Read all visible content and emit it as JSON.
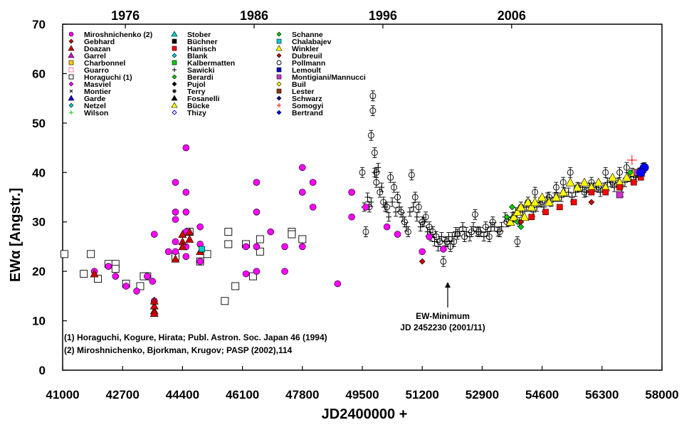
{
  "chart_data": {
    "type": "scatter",
    "xlabel": "JD2400000 +",
    "ylabel": "EWα [Angstr.]",
    "xlim": [
      41000,
      58000
    ],
    "ylim": [
      0,
      70
    ],
    "x_ticks": [
      41000,
      42700,
      44400,
      46100,
      47800,
      49500,
      51200,
      52900,
      54600,
      56300,
      58000
    ],
    "y_ticks": [
      0,
      10,
      20,
      30,
      40,
      50,
      60,
      70
    ],
    "top_axis": {
      "labels": [
        "1976",
        "1986",
        "1996",
        "2006"
      ],
      "positions_jd": [
        42779,
        46431,
        50083,
        53736
      ]
    },
    "grid": false,
    "legend_placement": "top-left",
    "series": [
      {
        "name": "Miroshnichenko (2)",
        "marker": "circle",
        "color": "#ff00ff"
      },
      {
        "name": "Gebhard",
        "marker": "diamond",
        "color": "#cc0000"
      },
      {
        "name": "Doazan",
        "marker": "triangle",
        "color": "#cc0000"
      },
      {
        "name": "Garrel",
        "marker": "triangle",
        "color": "#cc00cc"
      },
      {
        "name": "Charbonnel",
        "marker": "square",
        "color": "#ffcc00"
      },
      {
        "name": "Guarro",
        "marker": "square-open",
        "color": "#ff6699"
      },
      {
        "name": "Horaguchi (1)",
        "marker": "square-open",
        "color": "#000000"
      },
      {
        "name": "Masviel",
        "marker": "diamond",
        "color": "#ff00ff"
      },
      {
        "name": "Montier",
        "marker": "x",
        "color": "#000000"
      },
      {
        "name": "Garde",
        "marker": "triangle",
        "color": "#0000cc"
      },
      {
        "name": "Netzel",
        "marker": "diamond",
        "color": "#00cccc"
      },
      {
        "name": "Wilson",
        "marker": "plus",
        "color": "#00cc00"
      },
      {
        "name": "Stober",
        "marker": "triangle",
        "color": "#00cccc"
      },
      {
        "name": "Büchner",
        "marker": "square",
        "color": "#000000"
      },
      {
        "name": "Hanisch",
        "marker": "square",
        "color": "#ff0000"
      },
      {
        "name": "Blank",
        "marker": "diamond",
        "color": "#00cccc"
      },
      {
        "name": "Kalbermatten",
        "marker": "square",
        "color": "#00cc00"
      },
      {
        "name": "Sawicki",
        "marker": "plus",
        "color": "#000000"
      },
      {
        "name": "Berardi",
        "marker": "diamond",
        "color": "#00cc00"
      },
      {
        "name": "Pujol",
        "marker": "diamond",
        "color": "#000000"
      },
      {
        "name": "Terry",
        "marker": "star",
        "color": "#000000"
      },
      {
        "name": "Fosanelli",
        "marker": "triangle",
        "color": "#000000"
      },
      {
        "name": "Bücke",
        "marker": "triangle",
        "color": "#ffff00"
      },
      {
        "name": "Thizy",
        "marker": "diamond-open",
        "color": "#0000cc"
      },
      {
        "name": "Schanne",
        "marker": "diamond",
        "color": "#00cc00"
      },
      {
        "name": "Chalabajev",
        "marker": "square",
        "color": "#00cccc"
      },
      {
        "name": "Winkler",
        "marker": "triangle",
        "color": "#ffff00"
      },
      {
        "name": "Dubreuil",
        "marker": "diamond",
        "color": "#cc0000"
      },
      {
        "name": "Pollmann",
        "marker": "circle-open",
        "color": "#000000"
      },
      {
        "name": "Lemoult",
        "marker": "square",
        "color": "#0000cc"
      },
      {
        "name": "Montigiani/Mannucci",
        "marker": "square",
        "color": "#cc33cc"
      },
      {
        "name": "Buil",
        "marker": "diamond",
        "color": "#ffff00"
      },
      {
        "name": "Lester",
        "marker": "square",
        "color": "#993300"
      },
      {
        "name": "Schwarz",
        "marker": "diamond",
        "color": "#000099"
      },
      {
        "name": "Somogyi",
        "marker": "plus",
        "color": "#ff0000"
      },
      {
        "name": "Bertrand",
        "marker": "diamond",
        "color": "#0000ff"
      }
    ],
    "points": {
      "magenta_circles": [
        [
          41900,
          20
        ],
        [
          42300,
          21
        ],
        [
          42500,
          19
        ],
        [
          42800,
          17
        ],
        [
          43100,
          16
        ],
        [
          43400,
          19
        ],
        [
          43550,
          18
        ],
        [
          43600,
          14
        ],
        [
          43600,
          27.5
        ],
        [
          44000,
          24
        ],
        [
          44200,
          26
        ],
        [
          44200,
          38
        ],
        [
          44200,
          32
        ],
        [
          44200,
          30.5
        ],
        [
          44200,
          24
        ],
        [
          44500,
          45
        ],
        [
          44500,
          36
        ],
        [
          44500,
          32
        ],
        [
          44500,
          28
        ],
        [
          44500,
          25
        ],
        [
          44500,
          23
        ],
        [
          44900,
          29
        ],
        [
          44900,
          25.5
        ],
        [
          44900,
          22
        ],
        [
          46200,
          25
        ],
        [
          46200,
          19.5
        ],
        [
          46500,
          38
        ],
        [
          46500,
          32
        ],
        [
          46500,
          25
        ],
        [
          46500,
          20
        ],
        [
          46900,
          28
        ],
        [
          47300,
          25
        ],
        [
          47300,
          20
        ],
        [
          47800,
          41
        ],
        [
          47800,
          36
        ],
        [
          47800,
          25
        ],
        [
          48100,
          38
        ],
        [
          48100,
          33
        ],
        [
          48800,
          17.5
        ],
        [
          49200,
          31
        ],
        [
          49200,
          36
        ],
        [
          50200,
          29
        ],
        [
          50500,
          27.5
        ],
        [
          51200,
          24
        ],
        [
          51800,
          24.5
        ],
        [
          51400,
          27
        ],
        [
          49600,
          33
        ]
      ],
      "horaguchi_squares": [
        [
          41050,
          23.5
        ],
        [
          41600,
          19.5
        ],
        [
          41800,
          23.5
        ],
        [
          42000,
          18.5
        ],
        [
          42300,
          21.5
        ],
        [
          42500,
          21.5
        ],
        [
          42500,
          20.5
        ],
        [
          42800,
          17.5
        ],
        [
          43200,
          17
        ],
        [
          43400,
          19
        ],
        [
          43300,
          19
        ],
        [
          44200,
          23
        ],
        [
          44600,
          28
        ],
        [
          44900,
          22
        ],
        [
          45100,
          23.5
        ],
        [
          45600,
          14
        ],
        [
          45700,
          28
        ],
        [
          45700,
          25.5
        ],
        [
          45900,
          17
        ],
        [
          46200,
          25.5
        ],
        [
          46400,
          19
        ],
        [
          46600,
          26.5
        ],
        [
          46600,
          24
        ],
        [
          47500,
          28
        ],
        [
          47500,
          27.5
        ],
        [
          47800,
          26.5
        ]
      ],
      "red_triangles": [
        [
          41900,
          19.5
        ],
        [
          43600,
          12
        ],
        [
          43600,
          13
        ],
        [
          43600,
          11.5
        ],
        [
          43600,
          14
        ],
        [
          44200,
          22.5
        ],
        [
          44400,
          26
        ],
        [
          44400,
          27.5
        ],
        [
          44400,
          25
        ],
        [
          44600,
          26.5
        ],
        [
          44600,
          28
        ],
        [
          44900,
          24
        ]
      ],
      "cyan_squares": [
        [
          44950,
          24.5
        ]
      ],
      "pollmann_circles": [
        [
          49500,
          40
        ],
        [
          49600,
          28
        ],
        [
          49700,
          33
        ],
        [
          49750,
          47.5
        ],
        [
          49800,
          52.5
        ],
        [
          49800,
          55.5
        ],
        [
          49850,
          44
        ],
        [
          49900,
          40
        ],
        [
          49900,
          38
        ],
        [
          50000,
          36
        ],
        [
          50100,
          34
        ],
        [
          50200,
          33
        ],
        [
          50300,
          39
        ],
        [
          50400,
          37
        ],
        [
          50500,
          35
        ],
        [
          50600,
          32
        ],
        [
          50700,
          30
        ],
        [
          50800,
          28
        ],
        [
          50900,
          39.5
        ],
        [
          51000,
          35
        ],
        [
          51100,
          33
        ],
        [
          51200,
          30
        ],
        [
          51300,
          31
        ],
        [
          51400,
          29
        ],
        [
          51500,
          28
        ],
        [
          51600,
          27
        ],
        [
          51700,
          26
        ],
        [
          51800,
          22
        ],
        [
          51900,
          26
        ],
        [
          52000,
          25
        ],
        [
          52100,
          26
        ],
        [
          52200,
          27.5
        ],
        [
          52400,
          27
        ],
        [
          52600,
          28
        ],
        [
          52700,
          31.5
        ],
        [
          52800,
          28
        ],
        [
          53000,
          29
        ],
        [
          53100,
          27
        ],
        [
          53200,
          30
        ],
        [
          53400,
          28
        ],
        [
          53600,
          30
        ],
        [
          53800,
          31
        ],
        [
          53900,
          26
        ],
        [
          54000,
          33
        ],
        [
          54200,
          34
        ],
        [
          54400,
          36
        ],
        [
          54600,
          34
        ],
        [
          54800,
          35
        ],
        [
          55000,
          37
        ],
        [
          55200,
          38
        ],
        [
          55400,
          40
        ],
        [
          55600,
          37
        ],
        [
          55800,
          36
        ],
        [
          56000,
          38
        ],
        [
          56200,
          37
        ],
        [
          56400,
          40
        ],
        [
          56600,
          38
        ],
        [
          56800,
          40
        ],
        [
          57000,
          41
        ],
        [
          57200,
          39
        ],
        [
          57400,
          40
        ],
        [
          57500,
          41
        ]
      ],
      "black_crosses": [
        [
          49550,
          33
        ],
        [
          49650,
          35
        ],
        [
          49750,
          34
        ],
        [
          49850,
          40
        ],
        [
          49950,
          41
        ],
        [
          50050,
          37
        ],
        [
          50150,
          33
        ],
        [
          50250,
          31
        ],
        [
          50350,
          34
        ],
        [
          50450,
          32
        ],
        [
          50550,
          33
        ],
        [
          50650,
          31
        ],
        [
          50750,
          29
        ],
        [
          50850,
          32
        ],
        [
          50950,
          33
        ],
        [
          51050,
          31
        ],
        [
          51150,
          29
        ],
        [
          51250,
          30
        ],
        [
          51350,
          28
        ],
        [
          51450,
          27
        ],
        [
          51550,
          26
        ],
        [
          51650,
          25
        ],
        [
          51750,
          27
        ],
        [
          51850,
          26
        ],
        [
          51950,
          27
        ],
        [
          52050,
          27
        ],
        [
          52150,
          28
        ],
        [
          52250,
          28
        ],
        [
          52350,
          29
        ],
        [
          52450,
          28
        ],
        [
          52550,
          27
        ],
        [
          52650,
          29
        ],
        [
          52750,
          28
        ],
        [
          52850,
          28
        ],
        [
          52950,
          27
        ],
        [
          53050,
          28
        ],
        [
          53150,
          29
        ],
        [
          53250,
          29
        ],
        [
          53350,
          28
        ],
        [
          53450,
          29
        ],
        [
          53550,
          31
        ],
        [
          53650,
          30
        ],
        [
          53750,
          31
        ],
        [
          53850,
          32
        ],
        [
          53950,
          30
        ],
        [
          54050,
          32
        ],
        [
          54150,
          33
        ],
        [
          54250,
          33
        ],
        [
          54350,
          32
        ],
        [
          54450,
          33
        ],
        [
          54550,
          34
        ],
        [
          54650,
          33
        ],
        [
          54750,
          35
        ],
        [
          54850,
          34
        ],
        [
          54950,
          35
        ],
        [
          55050,
          35
        ],
        [
          55150,
          35
        ],
        [
          55250,
          36
        ],
        [
          55350,
          36
        ],
        [
          55450,
          35
        ],
        [
          55550,
          36
        ],
        [
          55650,
          37
        ],
        [
          55750,
          37
        ],
        [
          55850,
          36
        ],
        [
          55950,
          37
        ],
        [
          56050,
          37
        ],
        [
          56150,
          37
        ],
        [
          56250,
          36
        ],
        [
          56350,
          37
        ],
        [
          56450,
          38
        ],
        [
          56550,
          38
        ],
        [
          56650,
          37
        ],
        [
          56750,
          38
        ],
        [
          56850,
          36
        ],
        [
          56950,
          38
        ],
        [
          57050,
          39
        ],
        [
          57150,
          40
        ],
        [
          57250,
          39
        ],
        [
          57350,
          40
        ],
        [
          57450,
          41
        ]
      ],
      "yellow_triangles": [
        [
          53700,
          30
        ],
        [
          53800,
          31
        ],
        [
          53900,
          32
        ],
        [
          54000,
          33
        ],
        [
          54100,
          31
        ],
        [
          54200,
          34
        ],
        [
          54300,
          33
        ],
        [
          54400,
          34
        ],
        [
          54600,
          35
        ],
        [
          54800,
          34
        ],
        [
          55000,
          35
        ],
        [
          55200,
          36
        ],
        [
          55400,
          38
        ],
        [
          55600,
          37
        ],
        [
          55800,
          38
        ],
        [
          56000,
          37
        ],
        [
          56200,
          38
        ],
        [
          56400,
          37
        ],
        [
          56600,
          39
        ],
        [
          56800,
          38
        ],
        [
          57000,
          39
        ],
        [
          57200,
          40
        ],
        [
          57400,
          40
        ]
      ],
      "red_squares": [
        [
          54300,
          31
        ],
        [
          54700,
          32
        ],
        [
          55100,
          33
        ],
        [
          55500,
          34
        ],
        [
          56000,
          36
        ],
        [
          56400,
          36
        ],
        [
          56800,
          37
        ],
        [
          57200,
          38
        ],
        [
          57400,
          39
        ]
      ],
      "green_diamonds": [
        [
          53600,
          31
        ],
        [
          53750,
          33
        ],
        [
          53900,
          30
        ],
        [
          54000,
          29
        ],
        [
          57100,
          40
        ]
      ],
      "red_diamonds": [
        [
          51200,
          22
        ],
        [
          54000,
          30
        ],
        [
          56000,
          34
        ]
      ],
      "purple_squares": [
        [
          56800,
          35.5
        ],
        [
          57300,
          40
        ]
      ],
      "blue_diamonds": [
        [
          57500,
          41
        ],
        [
          57400,
          40
        ]
      ],
      "red_plus": [
        [
          57150,
          42.5
        ]
      ]
    },
    "annotations": [
      {
        "text": "EW-Minimum",
        "line2": "JD 2452230 (2001/11)",
        "x": 52230,
        "y": 17
      }
    ]
  },
  "notes": [
    "(1) Horaguchi, Kogure, Hirata; Publ. Astron. Soc. Japan 46 (1994)",
    "(2) Miroshnichenko, Bjorkman, Krugov; PASP (2002),114"
  ]
}
